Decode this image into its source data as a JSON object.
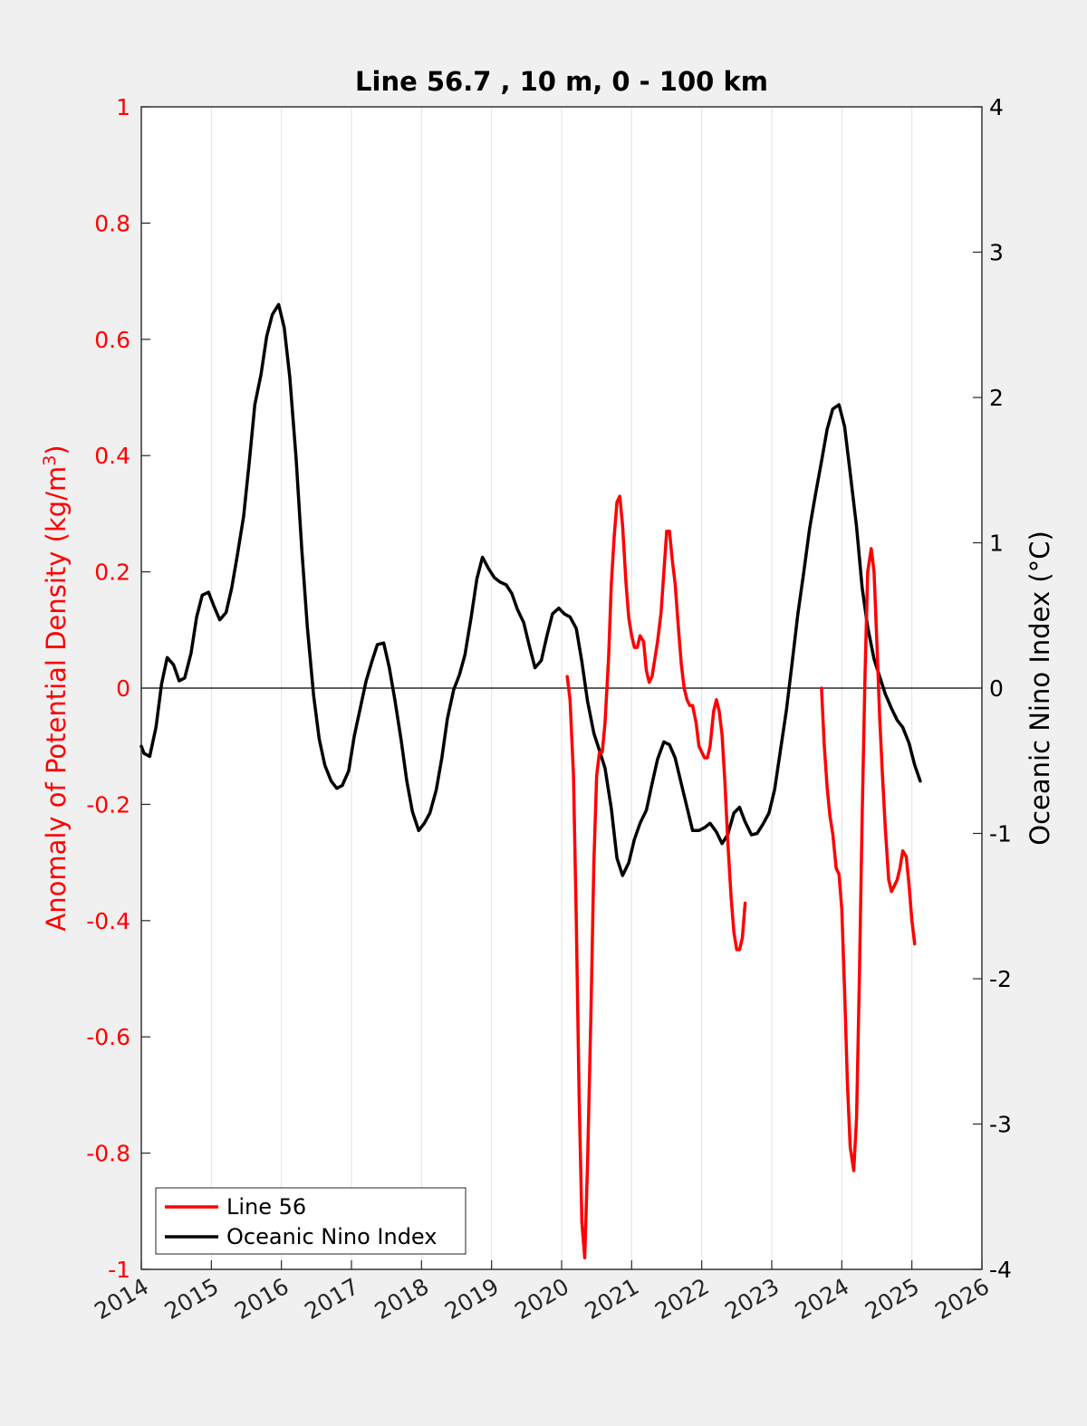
{
  "chart_data": {
    "type": "line",
    "title": "Line 56.7 , 10 m, 0 - 100 km",
    "ylabel_left": {
      "prefix": "Anomaly of Potential Density (kg/m",
      "sup": "3",
      "suffix": ")"
    },
    "ylabel_right": "Oceanic Nino Index (°C)",
    "xlim": [
      2014,
      2026
    ],
    "ylim_left": [
      -1,
      1
    ],
    "ylim_right": [
      -4,
      4
    ],
    "xticks": [
      "2014",
      "2015",
      "2016",
      "2017",
      "2018",
      "2019",
      "2020",
      "2021",
      "2022",
      "2023",
      "2024",
      "2025",
      "2026"
    ],
    "yticks_left": [
      "-1",
      "-0.8",
      "-0.6",
      "-0.4",
      "-0.2",
      "0",
      "0.2",
      "0.4",
      "0.6",
      "0.8",
      "1"
    ],
    "yticks_right": [
      "-4",
      "-3",
      "-2",
      "-1",
      "0",
      "1",
      "2",
      "3",
      "4"
    ],
    "grid": "vertical",
    "zero_line": true,
    "legend_position": "bottom-left",
    "colors": {
      "left_axis": "#ff0000",
      "line56": "#ff0000",
      "oni": "#000000"
    },
    "series": [
      {
        "name": "Line 56",
        "axis": "left",
        "color": "#ff0000",
        "segments": [
          [
            [
              2020.08,
              0.02
            ],
            [
              2020.12,
              -0.02
            ],
            [
              2020.17,
              -0.15
            ],
            [
              2020.21,
              -0.4
            ],
            [
              2020.25,
              -0.7
            ],
            [
              2020.29,
              -0.92
            ],
            [
              2020.33,
              -0.98
            ],
            [
              2020.37,
              -0.82
            ],
            [
              2020.42,
              -0.55
            ],
            [
              2020.46,
              -0.3
            ],
            [
              2020.5,
              -0.15
            ],
            [
              2020.54,
              -0.11
            ],
            [
              2020.58,
              -0.11
            ],
            [
              2020.62,
              -0.06
            ],
            [
              2020.67,
              0.05
            ],
            [
              2020.71,
              0.18
            ],
            [
              2020.75,
              0.26
            ],
            [
              2020.79,
              0.32
            ],
            [
              2020.83,
              0.33
            ],
            [
              2020.87,
              0.28
            ],
            [
              2020.92,
              0.18
            ],
            [
              2020.96,
              0.12
            ],
            [
              2021.0,
              0.09
            ],
            [
              2021.04,
              0.07
            ],
            [
              2021.08,
              0.07
            ],
            [
              2021.12,
              0.09
            ],
            [
              2021.17,
              0.08
            ],
            [
              2021.21,
              0.03
            ],
            [
              2021.25,
              0.01
            ],
            [
              2021.29,
              0.02
            ],
            [
              2021.33,
              0.05
            ],
            [
              2021.37,
              0.08
            ],
            [
              2021.42,
              0.13
            ],
            [
              2021.46,
              0.2
            ],
            [
              2021.5,
              0.27
            ],
            [
              2021.54,
              0.27
            ],
            [
              2021.58,
              0.22
            ],
            [
              2021.62,
              0.18
            ],
            [
              2021.67,
              0.1
            ],
            [
              2021.71,
              0.04
            ],
            [
              2021.75,
              0.0
            ],
            [
              2021.79,
              -0.02
            ],
            [
              2021.83,
              -0.03
            ],
            [
              2021.87,
              -0.03
            ],
            [
              2021.92,
              -0.06
            ],
            [
              2021.96,
              -0.1
            ],
            [
              2022.0,
              -0.11
            ],
            [
              2022.04,
              -0.12
            ],
            [
              2022.08,
              -0.12
            ],
            [
              2022.12,
              -0.1
            ],
            [
              2022.17,
              -0.04
            ],
            [
              2022.21,
              -0.02
            ],
            [
              2022.25,
              -0.04
            ],
            [
              2022.29,
              -0.08
            ],
            [
              2022.33,
              -0.16
            ],
            [
              2022.37,
              -0.26
            ],
            [
              2022.42,
              -0.36
            ],
            [
              2022.46,
              -0.42
            ],
            [
              2022.5,
              -0.45
            ],
            [
              2022.54,
              -0.45
            ],
            [
              2022.58,
              -0.43
            ],
            [
              2022.62,
              -0.37
            ]
          ],
          [
            [
              2023.71,
              0.0
            ],
            [
              2023.75,
              -0.1
            ],
            [
              2023.79,
              -0.17
            ],
            [
              2023.83,
              -0.22
            ],
            [
              2023.87,
              -0.25
            ],
            [
              2023.92,
              -0.31
            ],
            [
              2023.96,
              -0.32
            ],
            [
              2024.0,
              -0.38
            ],
            [
              2024.04,
              -0.52
            ],
            [
              2024.08,
              -0.68
            ],
            [
              2024.12,
              -0.79
            ],
            [
              2024.17,
              -0.83
            ],
            [
              2024.21,
              -0.74
            ],
            [
              2024.25,
              -0.5
            ],
            [
              2024.29,
              -0.22
            ],
            [
              2024.33,
              0.02
            ],
            [
              2024.37,
              0.2
            ],
            [
              2024.42,
              0.24
            ],
            [
              2024.46,
              0.2
            ],
            [
              2024.5,
              0.08
            ],
            [
              2024.54,
              -0.05
            ],
            [
              2024.58,
              -0.15
            ],
            [
              2024.62,
              -0.24
            ],
            [
              2024.67,
              -0.33
            ],
            [
              2024.71,
              -0.35
            ],
            [
              2024.75,
              -0.34
            ],
            [
              2024.79,
              -0.33
            ],
            [
              2024.83,
              -0.31
            ],
            [
              2024.87,
              -0.28
            ],
            [
              2024.92,
              -0.29
            ],
            [
              2024.96,
              -0.34
            ],
            [
              2025.0,
              -0.4
            ],
            [
              2025.04,
              -0.44
            ]
          ]
        ]
      },
      {
        "name": "Oceanic Nino Index",
        "axis": "right",
        "color": "#000000",
        "segments": [
          [
            [
              2014.0,
              -0.4
            ],
            [
              2014.04,
              -0.45
            ],
            [
              2014.12,
              -0.47
            ],
            [
              2014.21,
              -0.27
            ],
            [
              2014.29,
              0.03
            ],
            [
              2014.37,
              0.21
            ],
            [
              2014.46,
              0.16
            ],
            [
              2014.54,
              0.05
            ],
            [
              2014.62,
              0.07
            ],
            [
              2014.71,
              0.24
            ],
            [
              2014.79,
              0.49
            ],
            [
              2014.87,
              0.64
            ],
            [
              2014.96,
              0.66
            ],
            [
              2015.04,
              0.56
            ],
            [
              2015.12,
              0.47
            ],
            [
              2015.21,
              0.52
            ],
            [
              2015.29,
              0.69
            ],
            [
              2015.37,
              0.91
            ],
            [
              2015.46,
              1.18
            ],
            [
              2015.54,
              1.55
            ],
            [
              2015.62,
              1.95
            ],
            [
              2015.71,
              2.16
            ],
            [
              2015.79,
              2.42
            ],
            [
              2015.87,
              2.57
            ],
            [
              2015.96,
              2.64
            ],
            [
              2016.04,
              2.48
            ],
            [
              2016.12,
              2.14
            ],
            [
              2016.21,
              1.58
            ],
            [
              2016.29,
              0.96
            ],
            [
              2016.37,
              0.42
            ],
            [
              2016.46,
              -0.05
            ],
            [
              2016.54,
              -0.35
            ],
            [
              2016.62,
              -0.53
            ],
            [
              2016.71,
              -0.64
            ],
            [
              2016.79,
              -0.69
            ],
            [
              2016.87,
              -0.67
            ],
            [
              2016.96,
              -0.57
            ],
            [
              2017.04,
              -0.33
            ],
            [
              2017.12,
              -0.15
            ],
            [
              2017.21,
              0.05
            ],
            [
              2017.29,
              0.18
            ],
            [
              2017.37,
              0.3
            ],
            [
              2017.46,
              0.31
            ],
            [
              2017.54,
              0.14
            ],
            [
              2017.62,
              -0.08
            ],
            [
              2017.71,
              -0.36
            ],
            [
              2017.79,
              -0.64
            ],
            [
              2017.87,
              -0.85
            ],
            [
              2017.96,
              -0.98
            ],
            [
              2018.04,
              -0.93
            ],
            [
              2018.12,
              -0.86
            ],
            [
              2018.21,
              -0.7
            ],
            [
              2018.29,
              -0.48
            ],
            [
              2018.37,
              -0.21
            ],
            [
              2018.46,
              -0.01
            ],
            [
              2018.54,
              0.09
            ],
            [
              2018.62,
              0.23
            ],
            [
              2018.71,
              0.49
            ],
            [
              2018.79,
              0.75
            ],
            [
              2018.87,
              0.9
            ],
            [
              2018.96,
              0.82
            ],
            [
              2019.04,
              0.76
            ],
            [
              2019.12,
              0.73
            ],
            [
              2019.21,
              0.71
            ],
            [
              2019.29,
              0.65
            ],
            [
              2019.37,
              0.54
            ],
            [
              2019.46,
              0.45
            ],
            [
              2019.54,
              0.29
            ],
            [
              2019.62,
              0.14
            ],
            [
              2019.71,
              0.19
            ],
            [
              2019.79,
              0.36
            ],
            [
              2019.87,
              0.51
            ],
            [
              2019.96,
              0.55
            ],
            [
              2020.04,
              0.51
            ],
            [
              2020.12,
              0.49
            ],
            [
              2020.21,
              0.41
            ],
            [
              2020.29,
              0.18
            ],
            [
              2020.37,
              -0.09
            ],
            [
              2020.46,
              -0.31
            ],
            [
              2020.54,
              -0.43
            ],
            [
              2020.62,
              -0.55
            ],
            [
              2020.71,
              -0.83
            ],
            [
              2020.79,
              -1.17
            ],
            [
              2020.87,
              -1.29
            ],
            [
              2020.96,
              -1.2
            ],
            [
              2021.04,
              -1.04
            ],
            [
              2021.12,
              -0.93
            ],
            [
              2021.21,
              -0.84
            ],
            [
              2021.29,
              -0.66
            ],
            [
              2021.37,
              -0.49
            ],
            [
              2021.46,
              -0.37
            ],
            [
              2021.54,
              -0.39
            ],
            [
              2021.62,
              -0.48
            ],
            [
              2021.71,
              -0.66
            ],
            [
              2021.79,
              -0.82
            ],
            [
              2021.87,
              -0.98
            ],
            [
              2021.96,
              -0.98
            ],
            [
              2022.04,
              -0.96
            ],
            [
              2022.12,
              -0.93
            ],
            [
              2022.21,
              -0.99
            ],
            [
              2022.29,
              -1.07
            ],
            [
              2022.37,
              -1.01
            ],
            [
              2022.46,
              -0.86
            ],
            [
              2022.54,
              -0.82
            ],
            [
              2022.62,
              -0.92
            ],
            [
              2022.71,
              -1.01
            ],
            [
              2022.79,
              -1.0
            ],
            [
              2022.87,
              -0.94
            ],
            [
              2022.96,
              -0.86
            ],
            [
              2023.04,
              -0.7
            ],
            [
              2023.12,
              -0.44
            ],
            [
              2023.21,
              -0.15
            ],
            [
              2023.29,
              0.17
            ],
            [
              2023.37,
              0.5
            ],
            [
              2023.46,
              0.81
            ],
            [
              2023.54,
              1.1
            ],
            [
              2023.62,
              1.32
            ],
            [
              2023.71,
              1.56
            ],
            [
              2023.79,
              1.78
            ],
            [
              2023.87,
              1.92
            ],
            [
              2023.96,
              1.95
            ],
            [
              2024.04,
              1.8
            ],
            [
              2024.12,
              1.48
            ],
            [
              2024.21,
              1.11
            ],
            [
              2024.29,
              0.69
            ],
            [
              2024.37,
              0.42
            ],
            [
              2024.46,
              0.2
            ],
            [
              2024.54,
              0.08
            ],
            [
              2024.62,
              -0.04
            ],
            [
              2024.71,
              -0.14
            ],
            [
              2024.79,
              -0.22
            ],
            [
              2024.87,
              -0.27
            ],
            [
              2024.96,
              -0.38
            ],
            [
              2025.04,
              -0.53
            ],
            [
              2025.12,
              -0.64
            ]
          ]
        ]
      }
    ]
  },
  "legend": {
    "items": [
      "Line 56",
      "Oceanic Nino Index"
    ]
  }
}
